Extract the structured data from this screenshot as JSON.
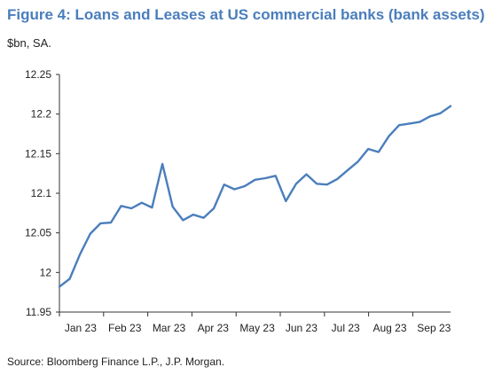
{
  "figure": {
    "title": "Figure 4: Loans and Leases at US commercial banks (bank assets)",
    "subtitle": "$bn, SA.",
    "source": "Source: Bloomberg Finance L.P., J.P. Morgan."
  },
  "chart_data": {
    "type": "line",
    "title": "Figure 4: Loans and Leases at US commercial banks (bank assets)",
    "ylabel": "$bn, SA.",
    "xlabel": "",
    "ylim": [
      11.95,
      12.25
    ],
    "y_ticks": [
      11.95,
      12,
      12.05,
      12.1,
      12.15,
      12.2,
      12.25
    ],
    "y_tick_labels": [
      "11.95",
      "12",
      "12.05",
      "12.1",
      "12.15",
      "12.2",
      "12.25"
    ],
    "x_tick_labels": [
      "Jan 23",
      "Feb 23",
      "Mar 23",
      "Apr 23",
      "May 23",
      "Jun 23",
      "Jul 23",
      "Aug 23",
      "Sep 23"
    ],
    "grid": false,
    "line_color": "#4a7ebb",
    "series": [
      {
        "values": [
          11.982,
          11.992,
          12.023,
          12.049,
          12.062,
          12.063,
          12.084,
          12.081,
          12.088,
          12.082,
          12.137,
          12.083,
          12.066,
          12.073,
          12.069,
          12.081,
          12.111,
          12.105,
          12.109,
          12.117,
          12.119,
          12.122,
          12.09,
          12.112,
          12.124,
          12.112,
          12.111,
          12.118,
          12.129,
          12.14,
          12.156,
          12.152,
          12.172,
          12.186,
          12.188,
          12.19,
          12.197,
          12.201,
          12.21
        ]
      }
    ]
  }
}
